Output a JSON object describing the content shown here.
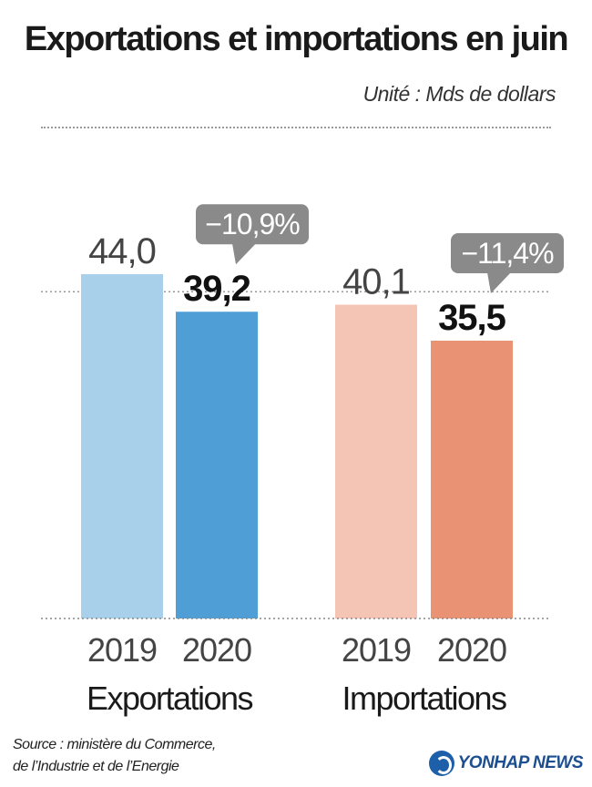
{
  "title": "Exportations et importations en juin",
  "unit": "Unité : Mds de dollars",
  "source_line1": "Source : ministère du Commerce,",
  "source_line2": "de l’Industrie et de l’Energie",
  "logo_text": "YONHAP NEWS",
  "colors": {
    "exports_2019": "#a9d0eb",
    "exports_2020": "#4f9fd6",
    "imports_2019": "#f4c5b4",
    "imports_2020": "#ea9274",
    "badge": "#8a8a8a",
    "baseline": "#888888"
  },
  "chart_data": {
    "type": "bar",
    "title": "Exportations et importations en juin",
    "ylabel": "Unité : Mds de dollars",
    "ylim": [
      0,
      44
    ],
    "groups": [
      {
        "name": "Exportations",
        "bars": [
          {
            "year": "2019",
            "value": 44.0,
            "label": "44,0"
          },
          {
            "year": "2020",
            "value": 39.2,
            "label": "39,2"
          }
        ],
        "change_label": "−10,9%"
      },
      {
        "name": "Importations",
        "bars": [
          {
            "year": "2019",
            "value": 40.1,
            "label": "40,1"
          },
          {
            "year": "2020",
            "value": 35.5,
            "label": "35,5"
          }
        ],
        "change_label": "−11,4%"
      }
    ]
  }
}
